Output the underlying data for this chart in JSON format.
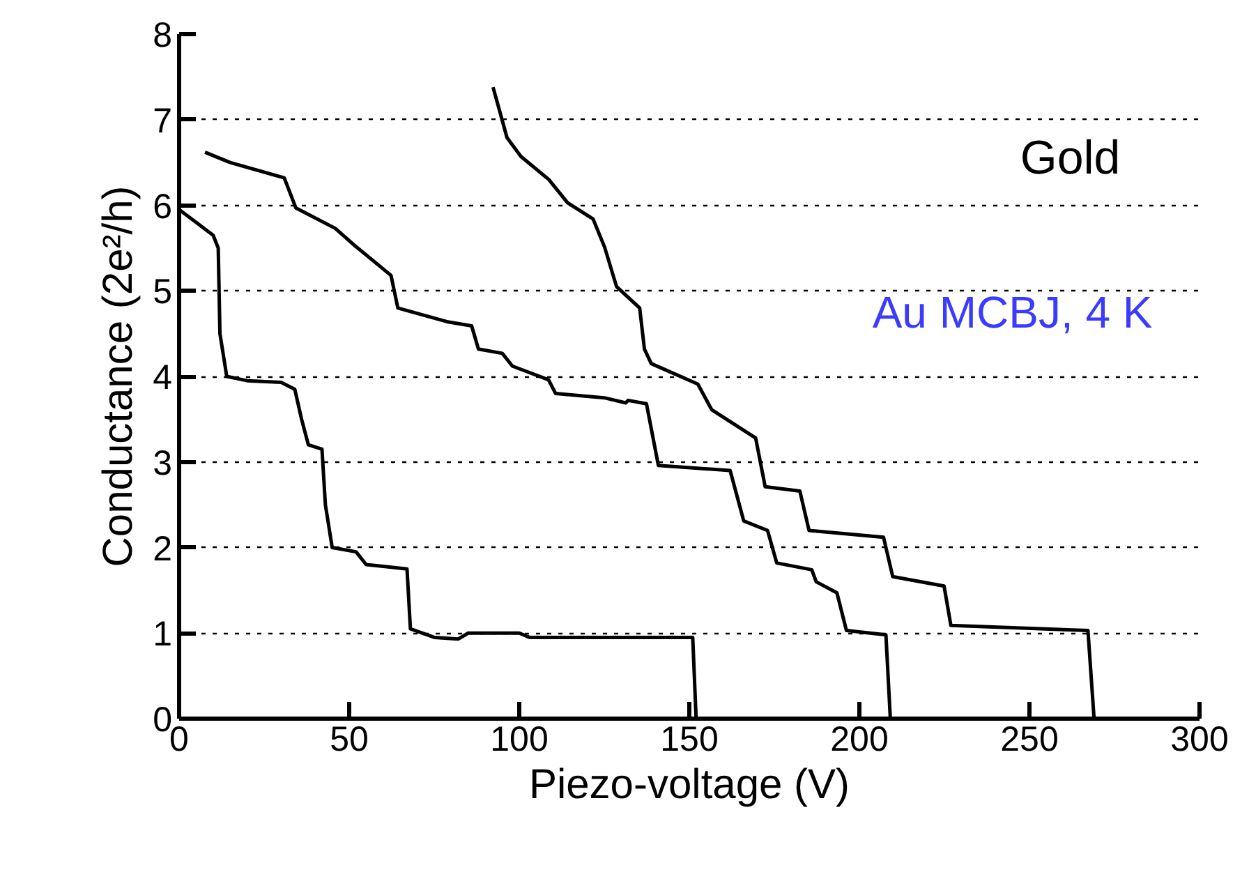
{
  "chart_data": {
    "type": "line",
    "xlabel": "Piezo-voltage (V)",
    "ylabel": "Conductance (2e²/h)",
    "annotations": [
      "Gold",
      "Au MCBJ, 4 K"
    ],
    "xlim": [
      0,
      300
    ],
    "xticks": [
      0,
      50,
      100,
      150,
      200,
      250,
      300
    ],
    "ylim": [
      0,
      8
    ],
    "yticks": [
      0,
      1,
      2,
      3,
      4,
      5,
      6,
      7,
      8
    ],
    "grid": "y",
    "marker": "none",
    "line_style": "solid",
    "series": [
      {
        "color": "#000000",
        "x": [
          0,
          5,
          10,
          11.5,
          12,
          14,
          20,
          30,
          34,
          36,
          38,
          42,
          43,
          45,
          52,
          55,
          60,
          67,
          68,
          75,
          82,
          85,
          100,
          103,
          150,
          151,
          152
        ],
        "values": [
          5.95,
          5.8,
          5.65,
          5.5,
          4.5,
          4.0,
          3.95,
          3.93,
          3.85,
          3.5,
          3.2,
          3.15,
          2.5,
          2.0,
          1.95,
          1.8,
          1.78,
          1.75,
          1.05,
          0.95,
          0.93,
          1.0,
          1.0,
          0.95,
          0.95,
          0.95,
          0
        ]
      },
      {
        "color": "#000000",
        "x": [
          7.6,
          15,
          30.9,
          34.3,
          45.9,
          51.3,
          62.3,
          64.3,
          78.7,
          86,
          88,
          95,
          98,
          108.6,
          110.7,
          125,
          131.3,
          132,
          137.4,
          140.9,
          162,
          166,
          173,
          175.7,
          186,
          187.3,
          193.4,
          196.2,
          207.8,
          209.1
        ],
        "values": [
          6.62,
          6.5,
          6.32,
          5.97,
          5.73,
          5.54,
          5.18,
          4.8,
          4.64,
          4.59,
          4.32,
          4.27,
          4.12,
          3.96,
          3.8,
          3.75,
          3.69,
          3.72,
          3.68,
          2.96,
          2.9,
          2.31,
          2.2,
          1.82,
          1.74,
          1.6,
          1.47,
          1.03,
          0.98,
          0
        ]
      },
      {
        "color": "#000000",
        "x": [
          92.3,
          96.4,
          100.5,
          108.7,
          114.2,
          121.7,
          125.1,
          128.6,
          135.4,
          136.8,
          138.8,
          152.5,
          156.6,
          169.5,
          172.3,
          182.5,
          185.2,
          207.1,
          209.8,
          224.9,
          226.9,
          267.2,
          269
        ],
        "values": [
          7.38,
          6.79,
          6.57,
          6.3,
          6.03,
          5.84,
          5.51,
          5.05,
          4.8,
          4.32,
          4.15,
          3.91,
          3.61,
          3.28,
          2.71,
          2.66,
          2.2,
          2.12,
          1.66,
          1.55,
          1.09,
          1.03,
          0
        ]
      }
    ]
  }
}
